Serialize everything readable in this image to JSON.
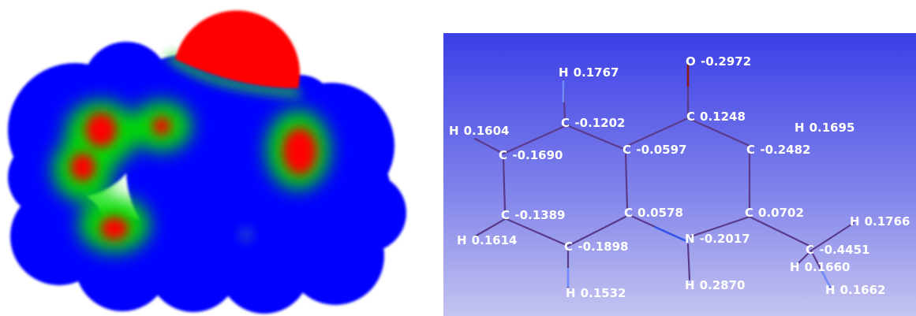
{
  "atoms": [
    {
      "element": "O",
      "charge": "-0.2972"
    },
    {
      "element": "H",
      "charge": "0.1767"
    },
    {
      "element": "C",
      "charge": "-0.1202"
    },
    {
      "element": "C",
      "charge": "0.1248"
    },
    {
      "element": "H",
      "charge": "0.1604"
    },
    {
      "element": "H",
      "charge": "0.1695"
    },
    {
      "element": "C",
      "charge": "-0.1690"
    },
    {
      "element": "C",
      "charge": "-0.0597"
    },
    {
      "element": "C",
      "charge": "-0.2482"
    },
    {
      "element": "C",
      "charge": "-0.1389"
    },
    {
      "element": "C",
      "charge": "0.0578"
    },
    {
      "element": "C",
      "charge": "0.0702"
    },
    {
      "element": "H",
      "charge": "0.1766"
    },
    {
      "element": "H",
      "charge": "0.1614"
    },
    {
      "element": "N",
      "charge": "-0.2017"
    },
    {
      "element": "C",
      "charge": "-0.1898"
    },
    {
      "element": "C",
      "charge": "-0.4451"
    },
    {
      "element": "H",
      "charge": "0.1660"
    },
    {
      "element": "H",
      "charge": "0.2870"
    },
    {
      "element": "H",
      "charge": "0.1532"
    },
    {
      "element": "H",
      "charge": "0.1662"
    }
  ]
}
